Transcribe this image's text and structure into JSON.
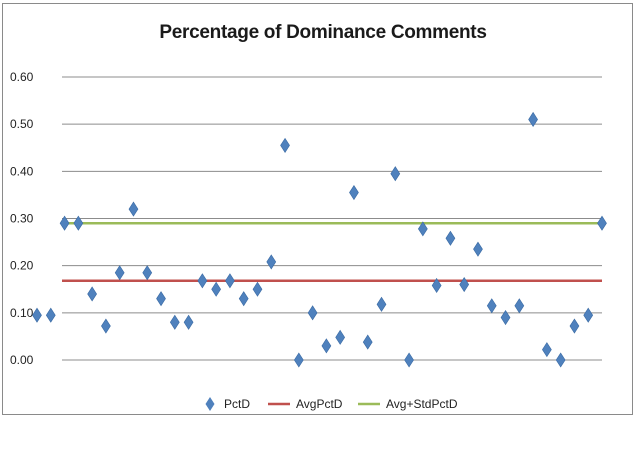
{
  "chart_data": {
    "type": "scatter",
    "title": "Percentage of Dominance Comments",
    "xlabel": "",
    "ylabel": "",
    "ylim": [
      0,
      0.6
    ],
    "y_ticks": [
      "0.00",
      "0.10",
      "0.20",
      "0.30",
      "0.40",
      "0.50",
      "0.60"
    ],
    "grid": true,
    "legend_position": "bottom",
    "series": [
      {
        "name": "PctD",
        "kind": "markers",
        "marker": "diamond",
        "color": "#4f81bd",
        "values": [
          0.095,
          0.095,
          0.29,
          0.29,
          0.14,
          0.072,
          0.185,
          0.32,
          0.185,
          0.13,
          0.08,
          0.08,
          0.168,
          0.15,
          0.168,
          0.13,
          0.15,
          0.208,
          0.455,
          0.0,
          0.1,
          0.03,
          0.048,
          0.355,
          0.038,
          0.118,
          0.395,
          0.0,
          0.278,
          0.158,
          0.258,
          0.16,
          0.235,
          0.115,
          0.09,
          0.115,
          0.51,
          0.022,
          0.0,
          0.072,
          0.095,
          0.29
        ]
      },
      {
        "name": "AvgPctD",
        "kind": "line",
        "color": "#c0504d",
        "value": 0.168
      },
      {
        "name": "Avg+StdPctD",
        "kind": "line",
        "color": "#9bbb59",
        "value": 0.29
      }
    ]
  }
}
